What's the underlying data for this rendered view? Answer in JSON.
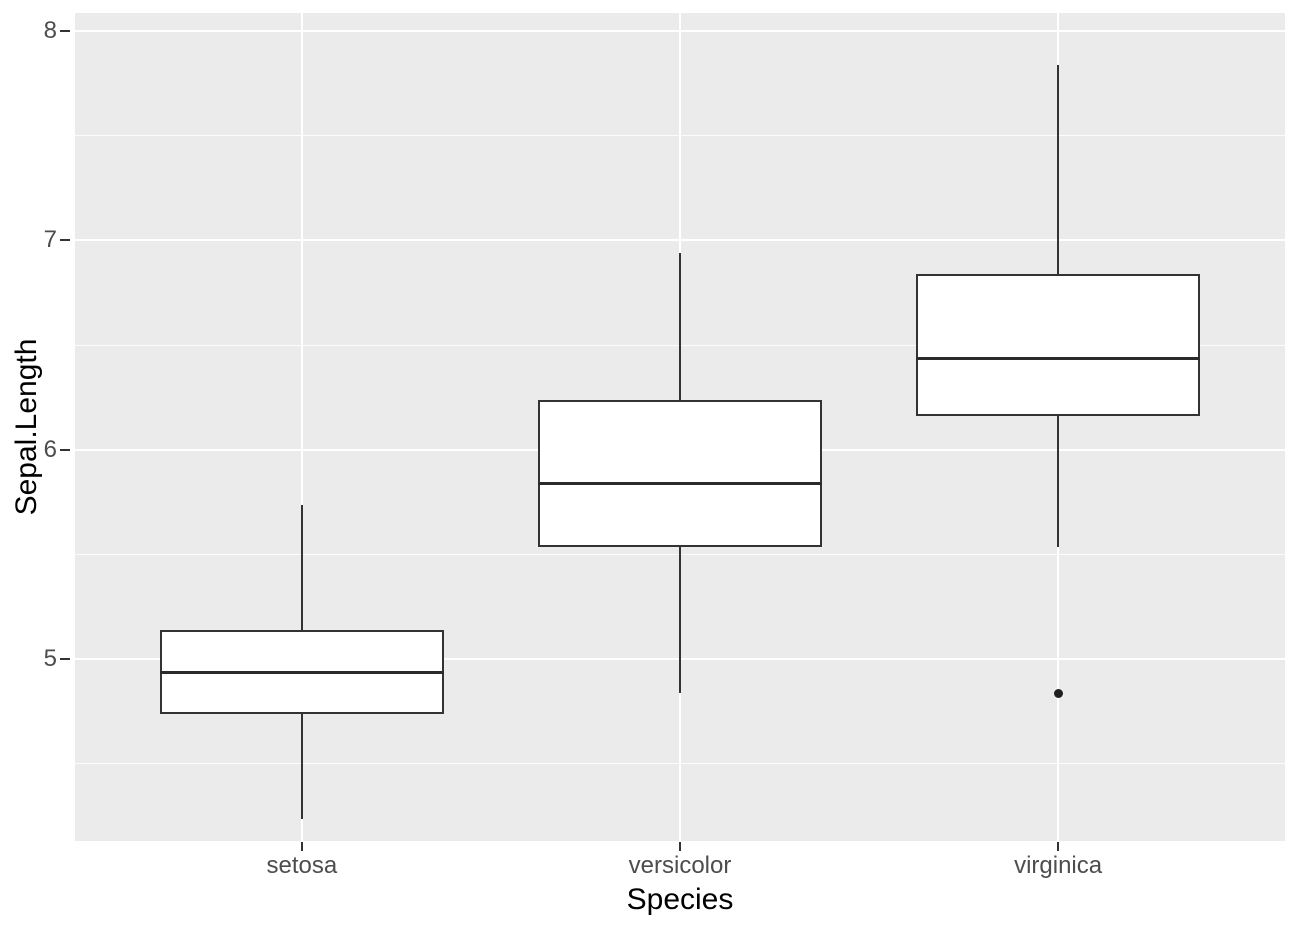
{
  "chart_data": {
    "type": "boxplot",
    "title": "",
    "xlabel": "Species",
    "ylabel": "Sepal.Length",
    "categories": [
      "setosa",
      "versicolor",
      "virginica"
    ],
    "series": [
      {
        "category": "setosa",
        "min": 4.3,
        "q1": 4.8,
        "median": 5.0,
        "q3": 5.2,
        "max": 5.8,
        "outliers": []
      },
      {
        "category": "versicolor",
        "min": 4.9,
        "q1": 5.6,
        "median": 5.9,
        "q3": 6.3,
        "max": 7.0,
        "outliers": []
      },
      {
        "category": "virginica",
        "min": 5.6,
        "q1": 6.225,
        "median": 6.5,
        "q3": 6.9,
        "max": 7.9,
        "outliers": [
          4.9
        ]
      }
    ],
    "y_major_ticks": [
      5,
      6,
      7,
      8
    ],
    "y_tick_labels": [
      "5",
      "6",
      "7",
      "8"
    ],
    "y_minor_gridlines": [
      4.5,
      5.5,
      6.5,
      7.5
    ],
    "ylim": [
      4.132,
      8.086
    ],
    "grid": "major and minor horizontal, major vertical at category centers",
    "legend": "none",
    "box_fill": "white",
    "colors": {
      "panel_background": "#EBEBEB",
      "gridline": "#FFFFFF",
      "box_border": "#333333",
      "box_fill": "#FFFFFF",
      "median": "#2B2B2B",
      "whisker": "#333333",
      "outlier": "#1F1F1F",
      "tick_mark": "#333333",
      "tick_text": "#4D4D4D",
      "axis_title_text": "#000000",
      "figure_background": "#FFFFFF"
    }
  }
}
